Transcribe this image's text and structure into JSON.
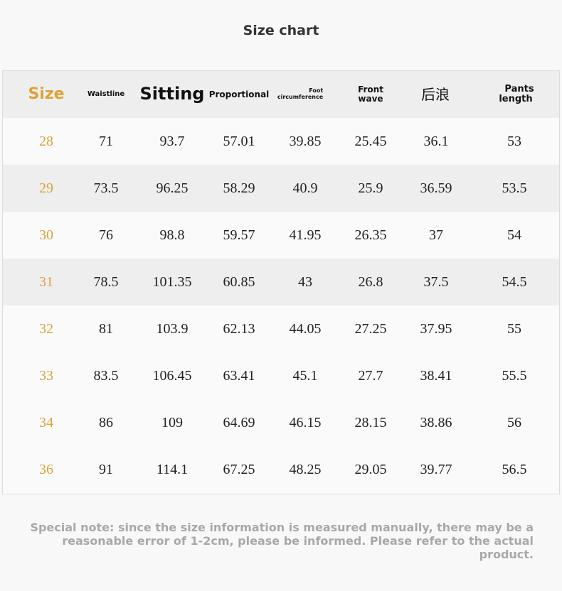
{
  "title": "Size chart",
  "headers": {
    "size": "Size",
    "waistline": "Waistline",
    "sitting": "Sitting",
    "proportional": "Proportional",
    "foot_line1": "Foot",
    "foot_line2": "circumference",
    "front_line1": "Front",
    "front_line2": "wave",
    "back": "后浪",
    "pants_line1": "Pants",
    "pants_line2": "length"
  },
  "rows": [
    {
      "size": "28",
      "waistline": "71",
      "sitting": "93.7",
      "proportional": "57.01",
      "foot": "39.85",
      "front": "25.45",
      "back": "36.1",
      "pants": "53"
    },
    {
      "size": "29",
      "waistline": "73.5",
      "sitting": "96.25",
      "proportional": "58.29",
      "foot": "40.9",
      "front": "25.9",
      "back": "36.59",
      "pants": "53.5"
    },
    {
      "size": "30",
      "waistline": "76",
      "sitting": "98.8",
      "proportional": "59.57",
      "foot": "41.95",
      "front": "26.35",
      "back": "37",
      "pants": "54"
    },
    {
      "size": "31",
      "waistline": "78.5",
      "sitting": "101.35",
      "proportional": "60.85",
      "foot": "43",
      "front": "26.8",
      "back": "37.5",
      "pants": "54.5"
    },
    {
      "size": "32",
      "waistline": "81",
      "sitting": "103.9",
      "proportional": "62.13",
      "foot": "44.05",
      "front": "27.25",
      "back": "37.95",
      "pants": "55"
    },
    {
      "size": "33",
      "waistline": "83.5",
      "sitting": "106.45",
      "proportional": "63.41",
      "foot": "45.1",
      "front": "27.7",
      "back": "38.41",
      "pants": "55.5"
    },
    {
      "size": "34",
      "waistline": "86",
      "sitting": "109",
      "proportional": "64.69",
      "foot": "46.15",
      "front": "28.15",
      "back": "38.86",
      "pants": "56"
    },
    {
      "size": "36",
      "waistline": "91",
      "sitting": "114.1",
      "proportional": "67.25",
      "foot": "48.25",
      "front": "29.05",
      "back": "39.77",
      "pants": "56.5"
    }
  ],
  "note_line1": "Special note: since the size information is measured manually, there may be a",
  "note_line2": "reasonable error of 1-2cm, please be informed. Please refer to the actual product.",
  "colors": {
    "accent": "#d9a43a",
    "row_shade": "#eeeeee",
    "note_text": "#a8a8a8"
  }
}
